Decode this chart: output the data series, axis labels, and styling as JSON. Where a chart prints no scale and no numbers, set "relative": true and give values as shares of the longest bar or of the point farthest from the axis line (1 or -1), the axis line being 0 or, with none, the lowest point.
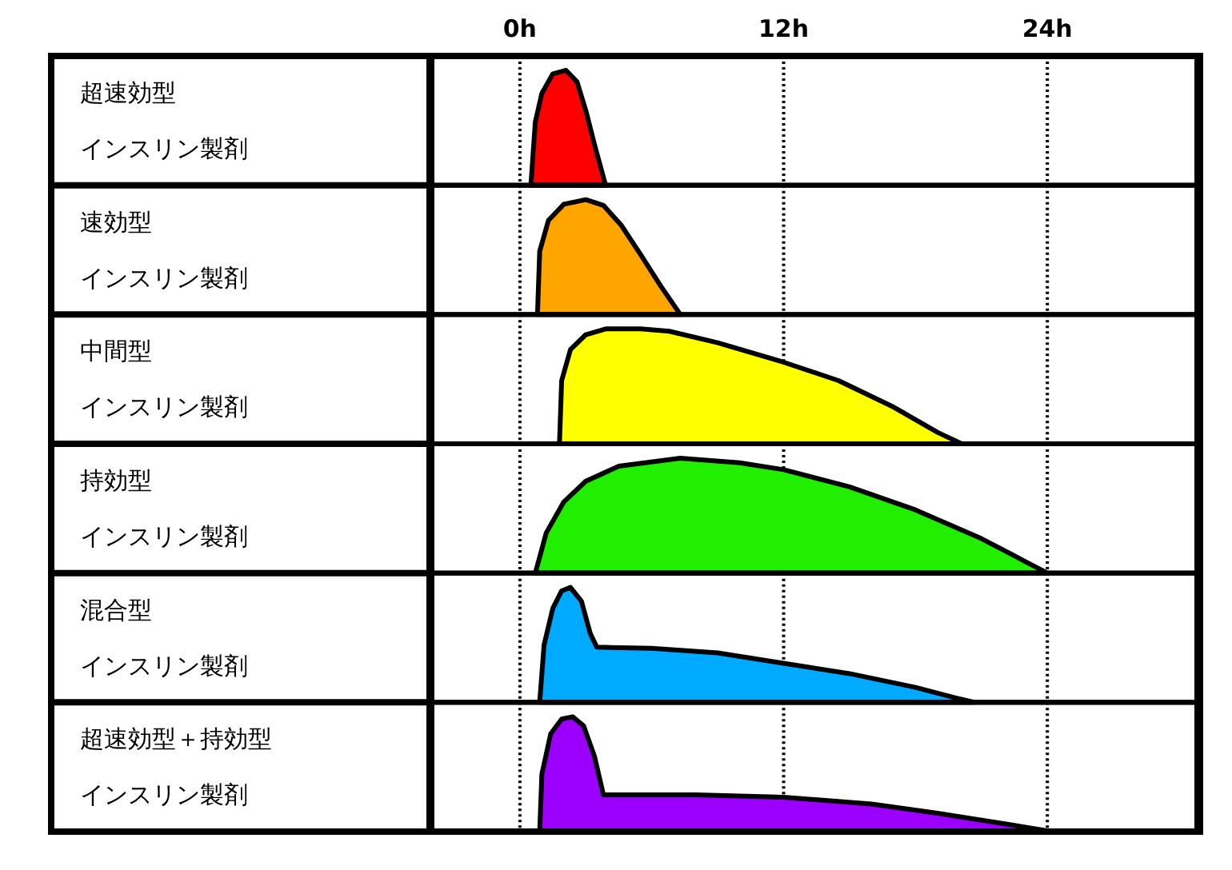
{
  "chart_data": [
    {
      "type": "area",
      "ylabel": "超速効型",
      "annotations": [
        "インスリン製剤"
      ],
      "relative": true,
      "xlim": [
        -4,
        30.8
      ],
      "xticks": [
        {
          "value": 0,
          "label": "0h"
        },
        {
          "value": 12,
          "label": "12h"
        },
        {
          "value": 24,
          "label": "24h"
        }
      ],
      "grid": "x",
      "tick_labels": "x",
      "color": "#ff0000",
      "x": [
        0.5,
        0.7,
        1.0,
        1.5,
        2.1,
        2.6,
        3.0,
        3.4,
        3.9
      ],
      "values": [
        0,
        0.55,
        0.8,
        0.97,
        1,
        0.9,
        0.65,
        0.35,
        0
      ]
    },
    {
      "type": "area",
      "ylabel": "速効型",
      "annotations": [
        "インスリン製剤"
      ],
      "relative": true,
      "xlim": [
        -4,
        30.8
      ],
      "xticks": [
        0,
        12,
        24
      ],
      "grid": "x",
      "tick_labels": false,
      "color": "#ffa500",
      "x": [
        0.8,
        0.9,
        1.3,
        2.0,
        3.0,
        3.8,
        4.6,
        5.5,
        6.4,
        7.3
      ],
      "values": [
        0,
        0.55,
        0.82,
        0.96,
        1,
        0.95,
        0.78,
        0.52,
        0.25,
        0
      ]
    },
    {
      "type": "area",
      "ylabel": "中間型",
      "annotations": [
        "インスリン製剤"
      ],
      "relative": true,
      "xlim": [
        -4,
        30.8
      ],
      "xticks": [
        0,
        12,
        24
      ],
      "grid": "x",
      "tick_labels": false,
      "color": "#ffff00",
      "x": [
        1.8,
        1.9,
        2.3,
        3.0,
        3.9,
        5.5,
        6.8,
        9.0,
        12.0,
        14.5,
        17.0,
        19.0,
        20.1
      ],
      "values": [
        0,
        0.55,
        0.82,
        0.95,
        1,
        1,
        0.98,
        0.88,
        0.71,
        0.55,
        0.32,
        0.1,
        0
      ]
    },
    {
      "type": "area",
      "ylabel": "持効型",
      "annotations": [
        "インスリン製剤"
      ],
      "relative": true,
      "xlim": [
        -4,
        30.8
      ],
      "xticks": [
        0,
        12,
        24
      ],
      "grid": "x",
      "tick_labels": false,
      "color": "#22ee00",
      "x": [
        0.7,
        1.2,
        2.0,
        3.0,
        4.5,
        7.3,
        10.0,
        12.0,
        15.0,
        18.0,
        21.0,
        23.0,
        24.0
      ],
      "values": [
        0,
        0.35,
        0.62,
        0.8,
        0.93,
        1,
        0.96,
        0.9,
        0.75,
        0.55,
        0.3,
        0.1,
        0
      ]
    },
    {
      "type": "area",
      "ylabel": "混合型",
      "annotations": [
        "インスリン製剤"
      ],
      "relative": true,
      "xlim": [
        -4,
        30.8
      ],
      "xticks": [
        0,
        12,
        24
      ],
      "grid": "x",
      "tick_labels": false,
      "color": "#00aaff",
      "x": [
        0.9,
        1.1,
        1.5,
        1.9,
        2.3,
        2.8,
        3.2,
        3.5,
        6.0,
        9.0,
        12.0,
        15.0,
        18.0,
        19.8,
        20.7
      ],
      "values": [
        0,
        0.5,
        0.82,
        0.97,
        1,
        0.88,
        0.6,
        0.48,
        0.47,
        0.43,
        0.34,
        0.25,
        0.13,
        0.04,
        0
      ]
    },
    {
      "type": "area",
      "ylabel": "超速効型＋持効型",
      "annotations": [
        "インスリン製剤"
      ],
      "relative": true,
      "xlim": [
        -4,
        30.8
      ],
      "xticks": [
        0,
        12,
        24
      ],
      "grid": "x",
      "tick_labels": false,
      "color": "#9b00ff",
      "x": [
        0.9,
        1.0,
        1.4,
        1.9,
        2.4,
        2.9,
        3.4,
        3.8,
        8.0,
        12.0,
        16.0,
        19.0,
        22.0,
        24.2
      ],
      "values": [
        0,
        0.5,
        0.85,
        0.98,
        1,
        0.92,
        0.65,
        0.32,
        0.32,
        0.3,
        0.24,
        0.16,
        0.07,
        0
      ]
    }
  ]
}
